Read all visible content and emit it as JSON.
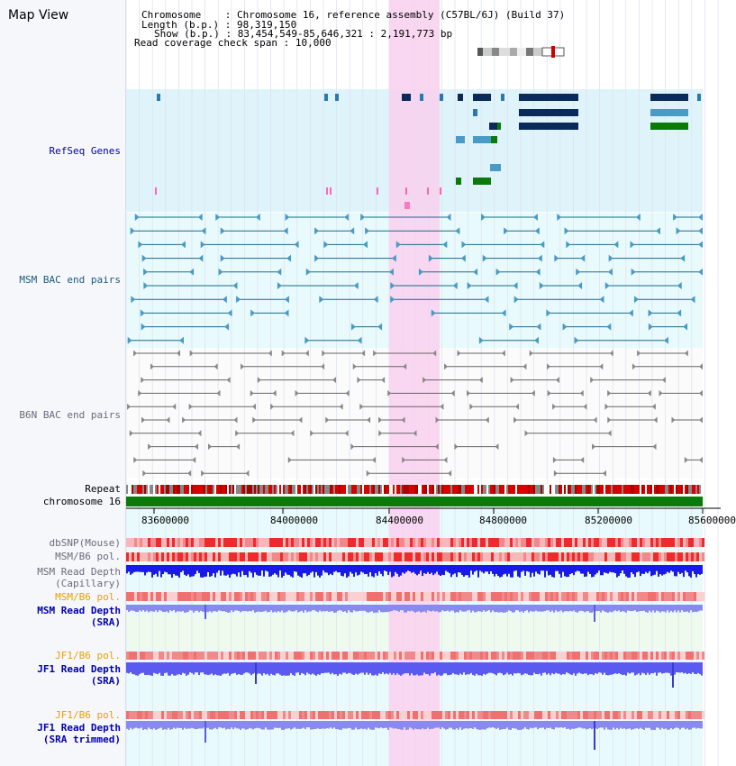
{
  "app_title": "Map View",
  "header": {
    "chromosome_label": "Chromosome",
    "chromosome_value": "Chromosome 16, reference assembly (C57BL/6J) (Build 37)",
    "length_label": "Length (b.p.)",
    "length_value": "98,319,150",
    "show_label": "Show (b.p.)",
    "show_value": "83,454,549-85,646,321 : 2,191,773 bp",
    "coverage_label": "Read coverage check span",
    "coverage_value": "10,000"
  },
  "tracks": {
    "refseq": "RefSeq Genes",
    "msm_bac": "MSM BAC end pairs",
    "b6n_bac": "B6N BAC end pairs",
    "repeat": "Repeat",
    "chromosome": "chromosome 16",
    "dbsnp": "dbSNP(Mouse)",
    "msm_b6_pol_1": "MSM/B6 pol.",
    "msm_read_depth_cap_1": "MSM Read Depth",
    "msm_read_depth_cap_2": "(Capillary)",
    "msm_b6_pol_2": "MSM/B6 pol.",
    "msm_read_depth_sra_1": "MSM Read Depth",
    "msm_read_depth_sra_2": "(SRA)",
    "jf1_b6_pol_1": "JF1/B6 pol.",
    "jf1_read_depth_sra_1": "JF1 Read Depth",
    "jf1_read_depth_sra_2": "(SRA)",
    "jf1_b6_pol_2": "JF1/B6 pol.",
    "jf1_read_depth_trim_1": "JF1 Read Depth",
    "jf1_read_depth_trim_2": "(SRA trimmed)"
  },
  "axis_ticks": [
    "83600000",
    "84000000",
    "84400000",
    "84800000",
    "85200000",
    "85600000"
  ],
  "colors": {
    "refseq_bg": "#dff3fb",
    "msm_bg": "#e8fafc",
    "highlight": "#f9d0ee",
    "chromosome_bar": "#0a7a0a",
    "label_navy": "#0000aa",
    "label_teal": "#1a5c7a",
    "label_orange": "#e8a000",
    "label_gray": "#6a6a7a"
  }
}
